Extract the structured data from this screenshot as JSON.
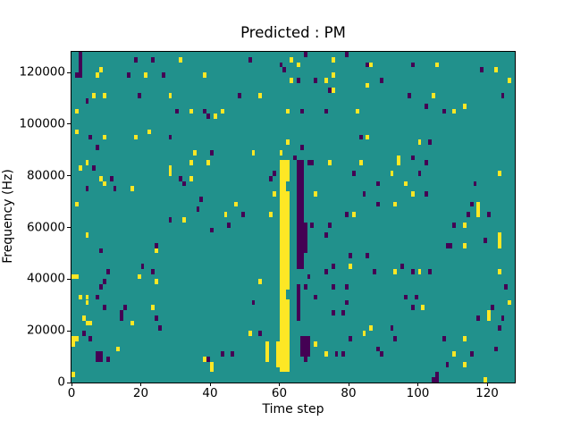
{
  "figure": {
    "kind": "matplotlib-canvas",
    "background": "#ffffff"
  },
  "chart_data": {
    "type": "heatmap",
    "title": "Predicted : PM",
    "xlabel": "Time step",
    "ylabel": "Frequency (Hz)",
    "x_ticks": [
      0,
      20,
      40,
      60,
      80,
      100,
      120
    ],
    "y_ticks": [
      0,
      20000,
      40000,
      60000,
      80000,
      100000,
      120000
    ],
    "xlim": [
      0,
      128
    ],
    "ylim": [
      0,
      128000
    ],
    "n_cols": 128,
    "n_rows": 64,
    "row_height_hz": 2000,
    "grid": false,
    "legend": "none",
    "colors": {
      "b": "#21918c",
      "h": "#fde725",
      "l": "#440154"
    },
    "value_legend": {
      "b": "background/mid",
      "h": "high (yellow)",
      "l": "low (dark purple)"
    },
    "regions": [
      {
        "t": [
          60,
          62
        ],
        "f": [
          2,
          42
        ],
        "v": "h"
      },
      {
        "t": [
          59,
          59
        ],
        "f": [
          3,
          7
        ],
        "v": "h"
      },
      {
        "t": [
          62,
          62
        ],
        "f": [
          16,
          17
        ],
        "v": "b"
      },
      {
        "t": [
          62,
          62
        ],
        "f": [
          37,
          38
        ],
        "v": "b"
      },
      {
        "t": [
          65,
          66
        ],
        "f": [
          22,
          42
        ],
        "v": "l"
      },
      {
        "t": [
          65,
          65
        ],
        "f": [
          12,
          18
        ],
        "v": "l"
      },
      {
        "t": [
          66,
          68
        ],
        "f": [
          5,
          8
        ],
        "v": "l"
      },
      {
        "t": [
          67,
          67
        ],
        "f": [
          25,
          30
        ],
        "v": "l"
      }
    ],
    "cells": [
      [
        2,
        63,
        "l"
      ],
      [
        2,
        62,
        "l"
      ],
      [
        18,
        62,
        "l"
      ],
      [
        2,
        61,
        "l"
      ],
      [
        2,
        60,
        "l"
      ],
      [
        1,
        59,
        "l"
      ],
      [
        2,
        59,
        "l"
      ],
      [
        8,
        60,
        "h"
      ],
      [
        7,
        59,
        "h"
      ],
      [
        16,
        59,
        "l"
      ],
      [
        21,
        59,
        "h"
      ],
      [
        26,
        59,
        "l"
      ],
      [
        23,
        62,
        "l"
      ],
      [
        31,
        62,
        "h"
      ],
      [
        38,
        59,
        "h"
      ],
      [
        6,
        55,
        "h"
      ],
      [
        9,
        55,
        "h"
      ],
      [
        19,
        55,
        "l"
      ],
      [
        28,
        55,
        "h"
      ],
      [
        4,
        54,
        "l"
      ],
      [
        1,
        52,
        "h"
      ],
      [
        30,
        52,
        "l"
      ],
      [
        34,
        52,
        "h"
      ],
      [
        38,
        52,
        "l"
      ],
      [
        39,
        51,
        "l"
      ],
      [
        41,
        51,
        "h"
      ],
      [
        1,
        48,
        "h"
      ],
      [
        5,
        47,
        "l"
      ],
      [
        9,
        47,
        "h"
      ],
      [
        18,
        47,
        "h"
      ],
      [
        22,
        48,
        "h"
      ],
      [
        28,
        47,
        "l"
      ],
      [
        7,
        45,
        "l"
      ],
      [
        35,
        44,
        "h"
      ],
      [
        40,
        44,
        "l"
      ],
      [
        51,
        62,
        "l"
      ],
      [
        63,
        62,
        "h"
      ],
      [
        67,
        63,
        "l"
      ],
      [
        75,
        62,
        "h"
      ],
      [
        79,
        63,
        "l"
      ],
      [
        60,
        61,
        "l"
      ],
      [
        65,
        61,
        "h"
      ],
      [
        61,
        60,
        "l"
      ],
      [
        63,
        58,
        "h"
      ],
      [
        65,
        58,
        "l"
      ],
      [
        70,
        58,
        "l"
      ],
      [
        73,
        58,
        "h"
      ],
      [
        74,
        56,
        "l"
      ],
      [
        75,
        56,
        "h"
      ],
      [
        75,
        59,
        "h"
      ],
      [
        48,
        55,
        "l"
      ],
      [
        54,
        55,
        "h"
      ],
      [
        43,
        52,
        "h"
      ],
      [
        62,
        52,
        "h"
      ],
      [
        66,
        52,
        "l"
      ],
      [
        73,
        52,
        "l"
      ],
      [
        82,
        52,
        "h"
      ],
      [
        83,
        47,
        "l"
      ],
      [
        62,
        46,
        "h"
      ],
      [
        66,
        45,
        "l"
      ],
      [
        60,
        44,
        "h"
      ],
      [
        52,
        44,
        "h"
      ],
      [
        64,
        43,
        "l"
      ],
      [
        85,
        61,
        "l"
      ],
      [
        86,
        61,
        "h"
      ],
      [
        98,
        61,
        "l"
      ],
      [
        105,
        61,
        "h"
      ],
      [
        118,
        60,
        "l"
      ],
      [
        122,
        60,
        "h"
      ],
      [
        85,
        57,
        "h"
      ],
      [
        89,
        58,
        "l"
      ],
      [
        126,
        58,
        "h"
      ],
      [
        97,
        55,
        "l"
      ],
      [
        104,
        55,
        "h"
      ],
      [
        124,
        55,
        "l"
      ],
      [
        102,
        53,
        "l"
      ],
      [
        113,
        53,
        "h"
      ],
      [
        107,
        52,
        "l"
      ],
      [
        110,
        52,
        "h"
      ],
      [
        85,
        47,
        "h"
      ],
      [
        100,
        46,
        "h"
      ],
      [
        103,
        46,
        "l"
      ],
      [
        94,
        43,
        "h"
      ],
      [
        98,
        43,
        "l"
      ],
      [
        4,
        42,
        "h"
      ],
      [
        2,
        41,
        "h"
      ],
      [
        6,
        41,
        "l"
      ],
      [
        8,
        39,
        "h"
      ],
      [
        11,
        39,
        "l"
      ],
      [
        9,
        38,
        "h"
      ],
      [
        4,
        37,
        "l"
      ],
      [
        12,
        37,
        "l"
      ],
      [
        17,
        37,
        "h"
      ],
      [
        34,
        42,
        "h"
      ],
      [
        39,
        42,
        "h"
      ],
      [
        28,
        41,
        "h"
      ],
      [
        28,
        40,
        "h"
      ],
      [
        31,
        39,
        "l"
      ],
      [
        34,
        39,
        "h"
      ],
      [
        32,
        38,
        "l"
      ],
      [
        37,
        35,
        "l"
      ],
      [
        36,
        33,
        "l"
      ],
      [
        28,
        31,
        "l"
      ],
      [
        32,
        31,
        "h"
      ],
      [
        40,
        29,
        "l"
      ],
      [
        4,
        28,
        "h"
      ],
      [
        24,
        26,
        "l"
      ],
      [
        24,
        25,
        "h"
      ],
      [
        8,
        25,
        "l"
      ],
      [
        20,
        22,
        "l"
      ],
      [
        1,
        34,
        "h"
      ],
      [
        58,
        40,
        "l"
      ],
      [
        57,
        39,
        "l"
      ],
      [
        58,
        36,
        "h"
      ],
      [
        68,
        42,
        "l"
      ],
      [
        69,
        42,
        "l"
      ],
      [
        74,
        42,
        "h"
      ],
      [
        81,
        40,
        "l"
      ],
      [
        83,
        42,
        "h"
      ],
      [
        70,
        36,
        "h"
      ],
      [
        47,
        34,
        "h"
      ],
      [
        44,
        32,
        "h"
      ],
      [
        49,
        32,
        "l"
      ],
      [
        45,
        30,
        "l"
      ],
      [
        57,
        32,
        "h"
      ],
      [
        69,
        30,
        "l"
      ],
      [
        74,
        30,
        "l"
      ],
      [
        73,
        28,
        "l"
      ],
      [
        79,
        32,
        "l"
      ],
      [
        81,
        32,
        "h"
      ],
      [
        75,
        22,
        "l"
      ],
      [
        80,
        24,
        "l"
      ],
      [
        80,
        22,
        "h"
      ],
      [
        84,
        36,
        "l"
      ],
      [
        94,
        42,
        "h"
      ],
      [
        102,
        42,
        "l"
      ],
      [
        92,
        40,
        "h"
      ],
      [
        123,
        40,
        "h"
      ],
      [
        100,
        40,
        "l"
      ],
      [
        88,
        38,
        "l"
      ],
      [
        96,
        38,
        "h"
      ],
      [
        116,
        38,
        "l"
      ],
      [
        98,
        36,
        "h"
      ],
      [
        102,
        36,
        "l"
      ],
      [
        115,
        34,
        "l"
      ],
      [
        88,
        34,
        "l"
      ],
      [
        93,
        34,
        "h"
      ],
      [
        114,
        32,
        "l"
      ],
      [
        117,
        34,
        "h"
      ],
      [
        117,
        33,
        "h"
      ],
      [
        117,
        32,
        "h"
      ],
      [
        120,
        32,
        "l"
      ],
      [
        110,
        30,
        "l"
      ],
      [
        113,
        30,
        "h"
      ],
      [
        119,
        27,
        "l"
      ],
      [
        123,
        28,
        "h"
      ],
      [
        123,
        27,
        "h"
      ],
      [
        123,
        26,
        "h"
      ],
      [
        108,
        26,
        "l"
      ],
      [
        109,
        26,
        "l"
      ],
      [
        113,
        26,
        "h"
      ],
      [
        85,
        24,
        "l"
      ],
      [
        95,
        22,
        "l"
      ],
      [
        0,
        20,
        "h"
      ],
      [
        1,
        20,
        "h"
      ],
      [
        10,
        21,
        "l"
      ],
      [
        19,
        20,
        "h"
      ],
      [
        23,
        21,
        "l"
      ],
      [
        8,
        18,
        "l"
      ],
      [
        9,
        19,
        "l"
      ],
      [
        24,
        19,
        "h"
      ],
      [
        2,
        16,
        "h"
      ],
      [
        4,
        16,
        "h"
      ],
      [
        4,
        15,
        "h"
      ],
      [
        7,
        16,
        "l"
      ],
      [
        9,
        14,
        "l"
      ],
      [
        14,
        13,
        "l"
      ],
      [
        15,
        14,
        "l"
      ],
      [
        23,
        14,
        "h"
      ],
      [
        3,
        12,
        "h"
      ],
      [
        4,
        11,
        "h"
      ],
      [
        5,
        11,
        "h"
      ],
      [
        14,
        12,
        "l"
      ],
      [
        17,
        11,
        "h"
      ],
      [
        24,
        12,
        "l"
      ],
      [
        25,
        10,
        "l"
      ],
      [
        3,
        9,
        "l"
      ],
      [
        0,
        8,
        "h"
      ],
      [
        0,
        7,
        "h"
      ],
      [
        1,
        8,
        "h"
      ],
      [
        5,
        8,
        "l"
      ],
      [
        7,
        5,
        "l"
      ],
      [
        8,
        5,
        "l"
      ],
      [
        7,
        4,
        "l"
      ],
      [
        8,
        4,
        "l"
      ],
      [
        10,
        4,
        "l"
      ],
      [
        13,
        6,
        "h"
      ],
      [
        38,
        4,
        "h"
      ],
      [
        39,
        4,
        "l"
      ],
      [
        40,
        3,
        "h"
      ],
      [
        40,
        2,
        "h"
      ],
      [
        0,
        1,
        "h"
      ],
      [
        68,
        20,
        "l"
      ],
      [
        73,
        21,
        "l"
      ],
      [
        54,
        19,
        "h"
      ],
      [
        67,
        18,
        "l"
      ],
      [
        70,
        16,
        "l"
      ],
      [
        75,
        18,
        "l"
      ],
      [
        79,
        18,
        "l"
      ],
      [
        52,
        15,
        "l"
      ],
      [
        75,
        13,
        "l"
      ],
      [
        78,
        13,
        "l"
      ],
      [
        79,
        15,
        "l"
      ],
      [
        67,
        4,
        "l"
      ],
      [
        70,
        7,
        "h"
      ],
      [
        73,
        5,
        "h"
      ],
      [
        76,
        5,
        "l"
      ],
      [
        78,
        5,
        "l"
      ],
      [
        80,
        8,
        "l"
      ],
      [
        84,
        9,
        "h"
      ],
      [
        51,
        9,
        "h"
      ],
      [
        54,
        9,
        "l"
      ],
      [
        56,
        7,
        "h"
      ],
      [
        56,
        6,
        "h"
      ],
      [
        56,
        5,
        "h"
      ],
      [
        56,
        4,
        "h"
      ],
      [
        43,
        5,
        "l"
      ],
      [
        46,
        5,
        "l"
      ],
      [
        87,
        21,
        "l"
      ],
      [
        93,
        21,
        "h"
      ],
      [
        98,
        21,
        "l"
      ],
      [
        100,
        21,
        "h"
      ],
      [
        103,
        21,
        "l"
      ],
      [
        123,
        21,
        "h"
      ],
      [
        125,
        18,
        "l"
      ],
      [
        126,
        15,
        "h"
      ],
      [
        96,
        16,
        "l"
      ],
      [
        99,
        16,
        "l"
      ],
      [
        98,
        14,
        "l"
      ],
      [
        101,
        14,
        "h"
      ],
      [
        121,
        14,
        "l"
      ],
      [
        117,
        12,
        "l"
      ],
      [
        120,
        13,
        "h"
      ],
      [
        120,
        12,
        "h"
      ],
      [
        124,
        12,
        "l"
      ],
      [
        86,
        10,
        "h"
      ],
      [
        92,
        10,
        "l"
      ],
      [
        123,
        10,
        "l"
      ],
      [
        93,
        8,
        "l"
      ],
      [
        107,
        8,
        "l"
      ],
      [
        113,
        8,
        "h"
      ],
      [
        88,
        6,
        "l"
      ],
      [
        122,
        6,
        "l"
      ],
      [
        89,
        5,
        "l"
      ],
      [
        110,
        5,
        "h"
      ],
      [
        115,
        5,
        "l"
      ],
      [
        108,
        3,
        "l"
      ],
      [
        113,
        3,
        "h"
      ],
      [
        105,
        1,
        "l"
      ],
      [
        119,
        0,
        "h"
      ],
      [
        104,
        0,
        "l"
      ],
      [
        105,
        0,
        "l"
      ]
    ]
  }
}
